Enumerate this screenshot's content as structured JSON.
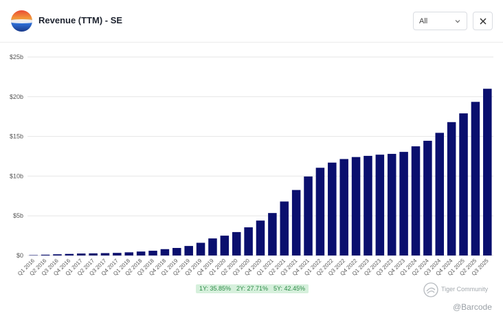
{
  "header": {
    "title": "Revenue (TTM) - SE",
    "range_select": {
      "value": "All"
    },
    "close_icon": "close-icon"
  },
  "growth_badges": [
    {
      "label": "1Y: 35.85%"
    },
    {
      "label": "2Y: 27.71%"
    },
    {
      "label": "5Y: 42.45%"
    }
  ],
  "watermark": {
    "brand": "Tiger Community",
    "user": "@Barcode"
  },
  "colors": {
    "bar": "#0a0f6e",
    "badge_bg": "#d6f0dc",
    "badge_text": "#2b8a45"
  },
  "chart_data": {
    "type": "bar",
    "title": "Revenue (TTM) - SE",
    "xlabel": "",
    "ylabel": "",
    "ylim": [
      0,
      25
    ],
    "y_ticks": [
      "$0",
      "$5b",
      "$10b",
      "$15b",
      "$20b",
      "$25b"
    ],
    "y_tick_values": [
      0,
      5,
      10,
      15,
      20,
      25
    ],
    "grid": true,
    "categories": [
      "Q1 2016",
      "Q2 2016",
      "Q3 2016",
      "Q4 2016",
      "Q1 2017",
      "Q2 2017",
      "Q3 2017",
      "Q4 2017",
      "Q1 2018",
      "Q2 2018",
      "Q3 2018",
      "Q4 2018",
      "Q1 2019",
      "Q2 2019",
      "Q3 2019",
      "Q4 2019",
      "Q1 2020",
      "Q2 2020",
      "Q3 2020",
      "Q4 2020",
      "Q1 2021",
      "Q2 2021",
      "Q3 2021",
      "Q4 2021",
      "Q1 2022",
      "Q2 2022",
      "Q3 2022",
      "Q4 2022",
      "Q1 2023",
      "Q2 2023",
      "Q3 2023",
      "Q4 2023",
      "Q1 2024",
      "Q2 2024",
      "Q3 2024",
      "Q4 2024",
      "Q1 2025",
      "Q2 2025",
      "Q3 2025"
    ],
    "values": [
      0.05,
      0.1,
      0.15,
      0.2,
      0.25,
      0.27,
      0.3,
      0.33,
      0.4,
      0.5,
      0.6,
      0.8,
      0.95,
      1.2,
      1.6,
      2.15,
      2.5,
      2.95,
      3.55,
      4.4,
      5.35,
      6.8,
      8.25,
      9.95,
      11.05,
      11.7,
      12.15,
      12.4,
      12.55,
      12.7,
      12.8,
      13.05,
      13.75,
      14.45,
      15.45,
      16.8,
      17.9,
      19.35,
      21.0
    ]
  }
}
